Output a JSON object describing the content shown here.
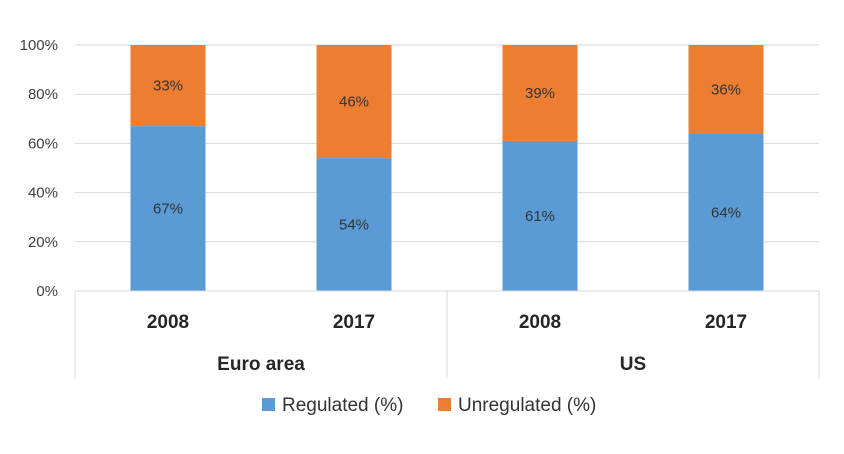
{
  "chart_data": {
    "type": "bar",
    "stacked": true,
    "categories": [
      "2008",
      "2017",
      "2008",
      "2017"
    ],
    "groups": [
      {
        "label": "Euro area",
        "categories": [
          0,
          1
        ]
      },
      {
        "label": "US",
        "categories": [
          2,
          3
        ]
      }
    ],
    "series": [
      {
        "name": "Regulated (%)",
        "values": [
          67,
          54,
          61,
          64
        ],
        "labels": [
          "67%",
          "54%",
          "61%",
          "64%"
        ],
        "color": "#5B9BD5"
      },
      {
        "name": "Unregulated (%)",
        "values": [
          33,
          46,
          39,
          36
        ],
        "labels": [
          "33%",
          "46%",
          "39%",
          "36%"
        ],
        "color": "#ED7D31"
      }
    ],
    "yticks": [
      "0%",
      "20%",
      "40%",
      "60%",
      "80%",
      "100%"
    ],
    "ylim": [
      0,
      100
    ],
    "grid": true,
    "legend": "bottom",
    "gridColor": "#D9D9D9"
  }
}
